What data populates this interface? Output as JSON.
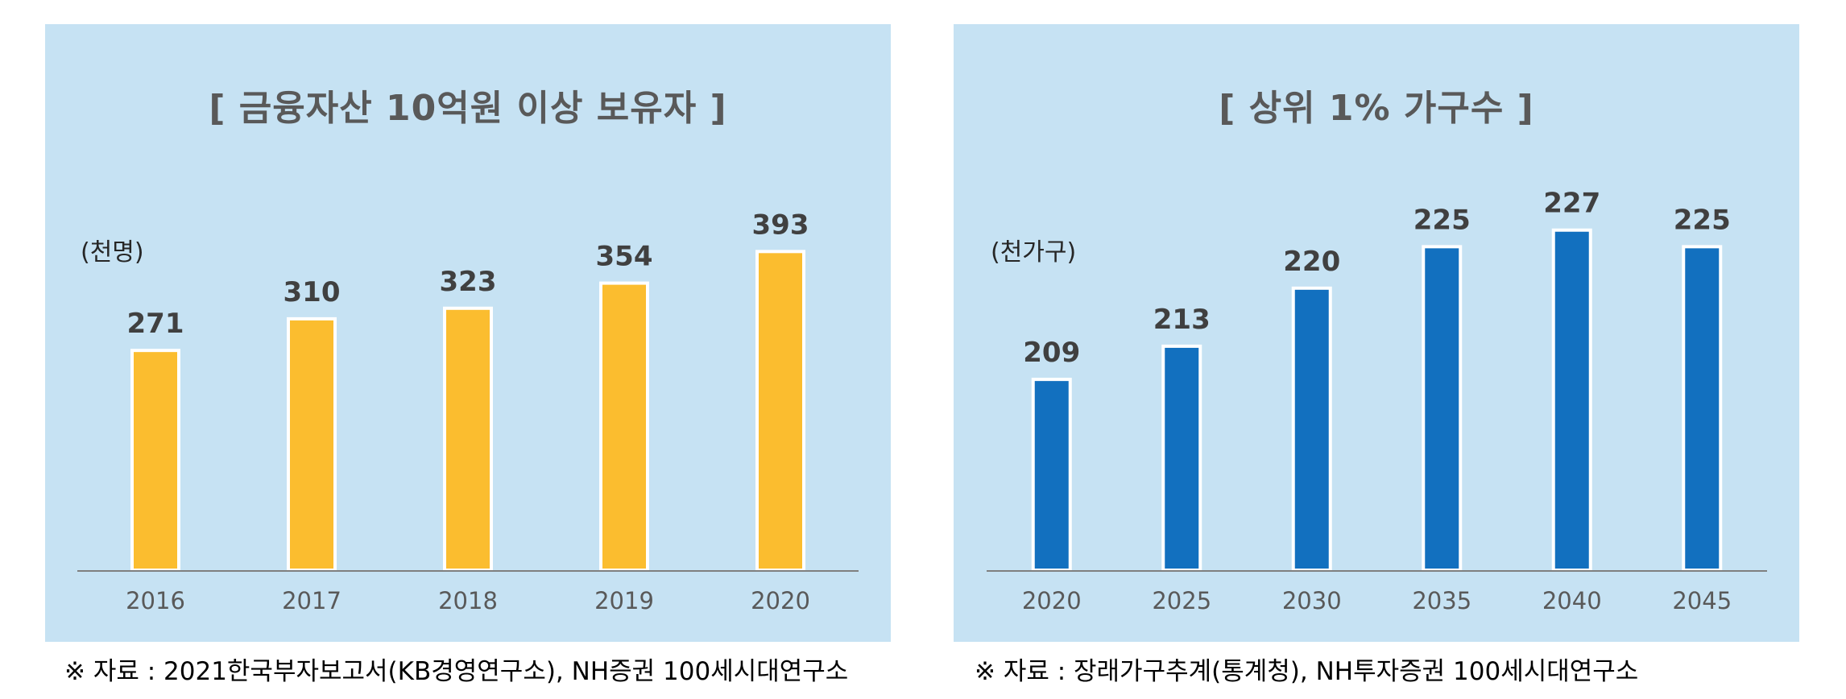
{
  "chart_data": [
    {
      "type": "bar",
      "title": "[ 금융자산 10억원 이상 보유자 ]",
      "unit_label": "(천명)",
      "categories": [
        "2016",
        "2017",
        "2018",
        "2019",
        "2020"
      ],
      "values": [
        271,
        310,
        323,
        354,
        393
      ],
      "ylim": [
        0,
        440
      ],
      "bar_color": "#fbbd2f",
      "grid": false,
      "source": "※ 자료 : 2021한국부자보고서(KB경영연구소), NH증권 100세시대연구소"
    },
    {
      "type": "bar",
      "title": "[ 상위 1% 가구수 ]",
      "unit_label": "(천가구)",
      "categories": [
        "2020",
        "2025",
        "2030",
        "2035",
        "2040",
        "2045"
      ],
      "values": [
        209,
        213,
        220,
        225,
        227,
        225
      ],
      "ylim": [
        186,
        229.5
      ],
      "bar_color": "#1270bf",
      "grid": false,
      "source": "※ 자료 : 장래가구추계(통계청), NH투자증권 100세시대연구소"
    }
  ],
  "colors": {
    "panel_background": "#c6e2f3",
    "axis_line": "#7f7f7f"
  }
}
